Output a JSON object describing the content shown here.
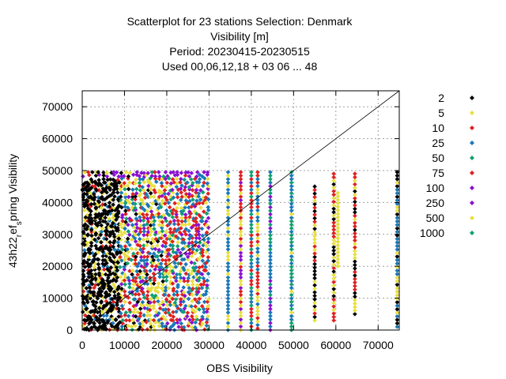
{
  "chart_data": {
    "type": "scatter",
    "title_lines": [
      "Scatterplot for   23 stations Selection: Denmark",
      "Visibility [m]",
      "Period: 20230415-20230515",
      "Used  00,06,12,18  + 03 06 ... 48"
    ],
    "xlabel": "OBS Visibility",
    "ylabel": "43h22 ref_spring Visibility",
    "ylabel_parts": {
      "main1": "43h22",
      "sub1": "r",
      "main2": "ef",
      "sub2": "s",
      "main3": "pring Visibility"
    },
    "xlim": [
      0,
      75000
    ],
    "ylim": [
      0,
      75000
    ],
    "xticks": [
      0,
      10000,
      20000,
      30000,
      40000,
      50000,
      60000,
      70000
    ],
    "yticks": [
      0,
      10000,
      20000,
      30000,
      40000,
      50000,
      60000,
      70000
    ],
    "grid": true,
    "diagonal": [
      [
        0,
        0
      ],
      [
        75000,
        75000
      ]
    ],
    "legend_position": "right",
    "series": [
      {
        "name": "2",
        "color": "#000000"
      },
      {
        "name": "5",
        "color": "#e8e040"
      },
      {
        "name": "10",
        "color": "#e02020"
      },
      {
        "name": "25",
        "color": "#1878b8"
      },
      {
        "name": "50",
        "color": "#10a070"
      },
      {
        "name": "75",
        "color": "#e02020"
      },
      {
        "name": "100",
        "color": "#8a10d0"
      },
      {
        "name": "250",
        "color": "#8a10d0"
      },
      {
        "name": "500",
        "color": "#e8e040"
      },
      {
        "name": "1000",
        "color": "#10a070"
      }
    ],
    "dense_band": {
      "x": [
        0,
        30000
      ],
      "y": [
        0,
        49500
      ]
    },
    "columns": [
      {
        "x": 34500,
        "y": [
          0,
          49500
        ],
        "colors": [
          "#1878b8",
          "#1878b8",
          "#e8e040"
        ]
      },
      {
        "x": 37500,
        "y": [
          0,
          49500
        ],
        "colors": [
          "#8a10d0",
          "#e02020",
          "#e8e040"
        ]
      },
      {
        "x": 40000,
        "y": [
          0,
          49500
        ],
        "colors": [
          "#1878b8",
          "#10a070",
          "#e02020"
        ]
      },
      {
        "x": 41500,
        "y": [
          500,
          49500
        ],
        "colors": [
          "#e02020",
          "#1878b8",
          "#e8e040"
        ]
      },
      {
        "x": 44500,
        "y": [
          0,
          49500
        ],
        "colors": [
          "#1878b8",
          "#10a070",
          "#8a10d0"
        ]
      },
      {
        "x": 49500,
        "y": [
          0,
          49500
        ],
        "colors": [
          "#10a070",
          "#1878b8",
          "#e8e040"
        ]
      },
      {
        "x": 55000,
        "y": [
          3000,
          45000
        ],
        "colors": [
          "#000000",
          "#e02020",
          "#e8e040"
        ]
      },
      {
        "x": 59500,
        "y": [
          3000,
          49000
        ],
        "colors": [
          "#e02020",
          "#e8e040",
          "#000000"
        ]
      },
      {
        "x": 60500,
        "y": [
          20000,
          43000
        ],
        "colors": [
          "#e8e040"
        ]
      },
      {
        "x": 64500,
        "y": [
          5000,
          49000
        ],
        "colors": [
          "#000000",
          "#e8e040",
          "#e02020"
        ]
      },
      {
        "x": 74500,
        "y": [
          1000,
          49500
        ],
        "colors": [
          "#1878b8",
          "#000000",
          "#e8e040"
        ]
      }
    ]
  }
}
